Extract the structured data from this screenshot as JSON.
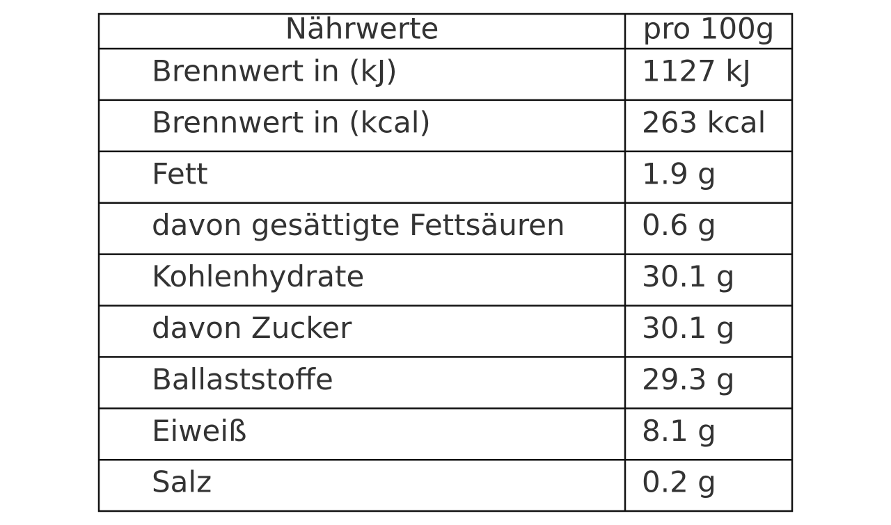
{
  "table": {
    "header": [
      "Nährwerte",
      "pro 100g"
    ],
    "rows": [
      [
        "Brennwert in (kJ)",
        "1127 kJ"
      ],
      [
        "Brennwert in (kcal)",
        "263 kcal"
      ],
      [
        "Fett",
        "1.9 g"
      ],
      [
        "davon gesättigte Fettsäuren",
        "0.6 g"
      ],
      [
        "Kohlenhydrate",
        "30.1 g"
      ],
      [
        "davon Zucker",
        "30.1 g"
      ],
      [
        "Ballaststoffe",
        "29.3 g"
      ],
      [
        "Eiweiß",
        "8.1 g"
      ],
      [
        "Salz",
        "0.2 g"
      ]
    ]
  }
}
